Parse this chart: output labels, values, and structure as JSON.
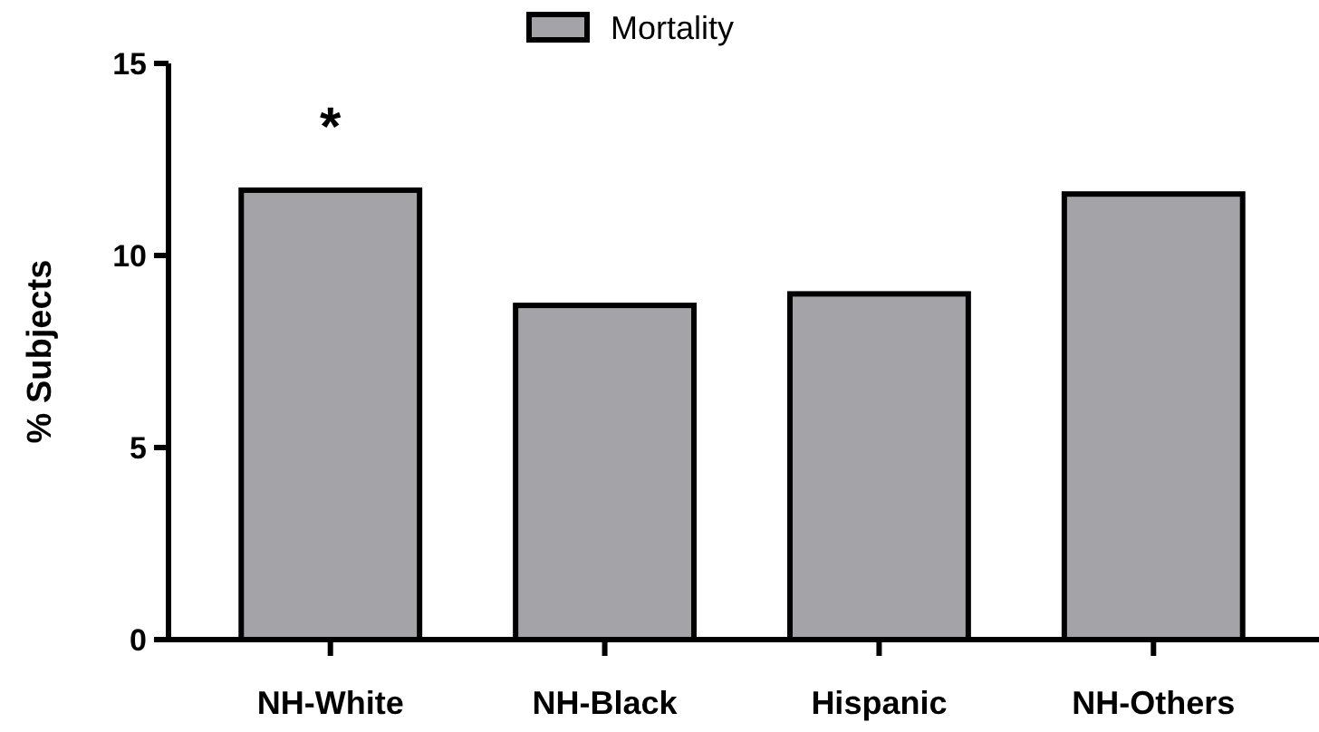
{
  "chart_data": {
    "type": "bar",
    "ylabel": "% Subjects",
    "categories": [
      "NH-White",
      "NH-Black",
      "Hispanic",
      "NH-Others"
    ],
    "series": [
      {
        "name": "Mortality",
        "color": "#a4a3a8",
        "values": [
          11.7,
          8.7,
          9.0,
          11.6
        ]
      }
    ],
    "ylim": [
      0,
      15
    ],
    "yticks": [
      0,
      5,
      10,
      15
    ],
    "grid": false,
    "legend": "top",
    "annotations": [
      "*"
    ]
  }
}
